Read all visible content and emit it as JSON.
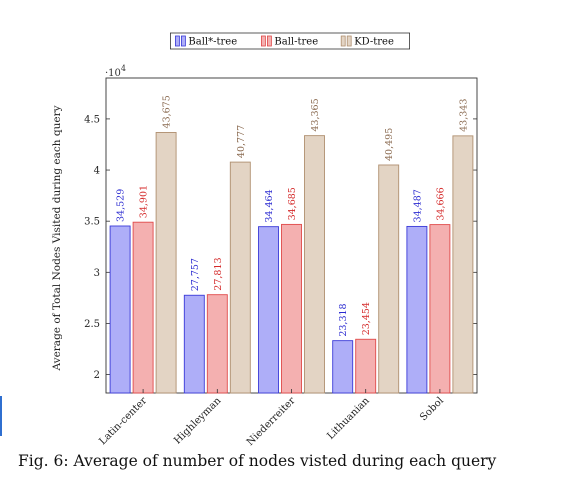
{
  "chart_data": {
    "type": "bar",
    "categories": [
      "Latin-center",
      "Highleyman",
      "Niederreiter",
      "Lithuanian",
      "Sobol"
    ],
    "series": [
      {
        "name": "Ball*-tree",
        "values": [
          34529,
          27757,
          34464,
          23318,
          34487
        ],
        "labels": [
          "34,529",
          "27,757",
          "34,464",
          "23,318",
          "34,487"
        ],
        "fill": "#aeaef8",
        "stroke": "#3a3ad8",
        "label_color": "#2a2ad0"
      },
      {
        "name": "Ball-tree",
        "values": [
          34901,
          27813,
          34685,
          23454,
          34666
        ],
        "labels": [
          "34,901",
          "27,813",
          "34,685",
          "23,454",
          "34,666"
        ],
        "fill": "#f4b0b0",
        "stroke": "#e04a4a",
        "label_color": "#d42a2a"
      },
      {
        "name": "KD-tree",
        "values": [
          43675,
          40777,
          43365,
          40495,
          43343
        ],
        "labels": [
          "43,675",
          "40,777",
          "43,365",
          "40,495",
          "43,343"
        ],
        "fill": "#e3d4c4",
        "stroke": "#b09070",
        "label_color": "#8a6a50"
      }
    ],
    "ylabel": "Average of Total Nodes Visited during each query",
    "xlabel": "",
    "ylim": [
      18200,
      49000
    ],
    "yticks": [
      20000,
      25000,
      30000,
      35000,
      40000,
      45000
    ],
    "ytick_labels": [
      "2",
      "2.5",
      "3",
      "3.5",
      "4",
      "4.5"
    ],
    "y_multiplier": "·10",
    "y_multiplier_exp": "4",
    "legend_position": "top-center",
    "grid": false
  },
  "caption": "Fig. 6: Average of number of nodes visted during each query"
}
